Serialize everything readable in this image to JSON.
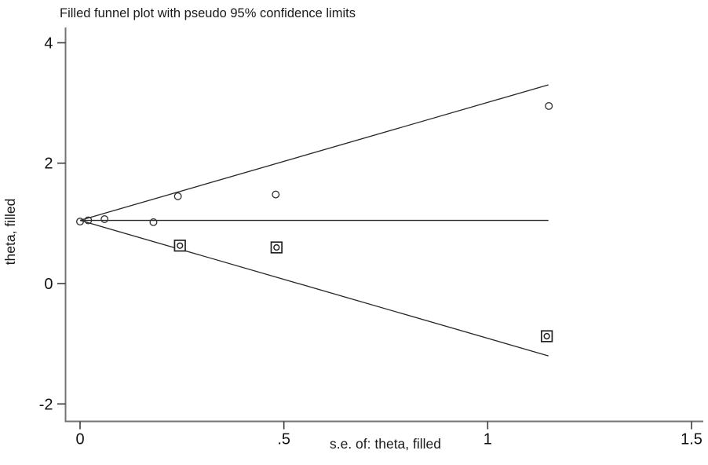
{
  "chart_data": {
    "type": "scatter",
    "title": "Filled funnel plot with pseudo 95% confidence limits",
    "xlabel": "s.e. of: theta, filled",
    "ylabel": "theta, filled",
    "xlim": [
      0,
      1.5
    ],
    "ylim": [
      -2,
      4
    ],
    "grid": false,
    "legend_position": "none",
    "x_ticks": [
      {
        "value": 0,
        "label": "0"
      },
      {
        "value": 0.5,
        "label": ".5"
      },
      {
        "value": 1,
        "label": "1"
      },
      {
        "value": 1.5,
        "label": "1.5"
      }
    ],
    "y_ticks": [
      {
        "value": 4,
        "label": "4"
      },
      {
        "value": 2,
        "label": "2"
      },
      {
        "value": 0,
        "label": "0"
      },
      {
        "value": -2,
        "label": "-2"
      }
    ],
    "series": [
      {
        "name": "observed studies",
        "marker": "hollow-circle",
        "points": [
          {
            "se": 0.0,
            "theta": 1.03
          },
          {
            "se": 0.02,
            "theta": 1.05
          },
          {
            "se": 0.06,
            "theta": 1.07
          },
          {
            "se": 0.18,
            "theta": 1.02
          },
          {
            "se": 0.24,
            "theta": 1.45
          },
          {
            "se": 0.48,
            "theta": 1.48
          },
          {
            "se": 1.15,
            "theta": 2.95
          }
        ]
      },
      {
        "name": "filled (imputed) studies",
        "marker": "boxed-circle",
        "points": [
          {
            "se": 0.245,
            "theta": 0.63
          },
          {
            "se": 0.482,
            "theta": 0.6
          },
          {
            "se": 1.145,
            "theta": -0.875
          }
        ]
      }
    ],
    "reference_lines": {
      "pooled_estimate_theta": 1.05,
      "ci_multiplier": 1.96,
      "se_range": [
        0,
        1.149
      ]
    },
    "colors": {
      "marker": "#333333",
      "funnel_line": "#262626",
      "axis_line": "#757575",
      "tick_mark": "#3d3d3d",
      "text": "#111111",
      "background": "#ffffff"
    }
  }
}
